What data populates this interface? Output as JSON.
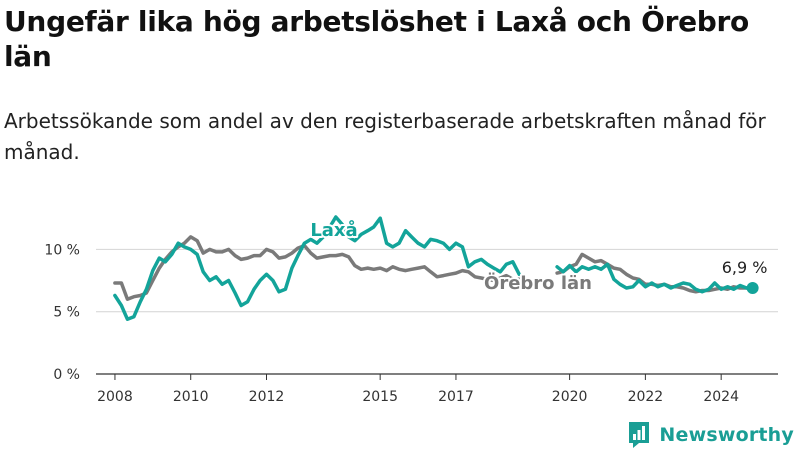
{
  "title": "Ungefär lika hög arbetslöshet i Laxå och Örebro län",
  "subtitle": "Arbetssökande som andel av den registerbaserade arbetskraften månad för månad.",
  "brand": {
    "name": "Newsworthy",
    "icon": "bar-chart-logo-icon"
  },
  "colors": {
    "laxa": "#13a49a",
    "orebro": "#7a7a7a",
    "grid": "#d4d4d4",
    "axis": "#333333"
  },
  "chart_data": {
    "type": "line",
    "xlim": [
      2007.5,
      2025.5
    ],
    "ylim": [
      0,
      13
    ],
    "yticks": [
      {
        "value": 0,
        "label": "0 %"
      },
      {
        "value": 5,
        "label": "5 %"
      },
      {
        "value": 10,
        "label": "10 %"
      }
    ],
    "xticks": [
      {
        "value": 2008,
        "label": "2008"
      },
      {
        "value": 2010,
        "label": "2010"
      },
      {
        "value": 2012,
        "label": "2012"
      },
      {
        "value": 2015,
        "label": "2015"
      },
      {
        "value": 2017,
        "label": "2017"
      },
      {
        "value": 2020,
        "label": "2020"
      },
      {
        "value": 2022,
        "label": "2022"
      },
      {
        "value": 2024,
        "label": "2024"
      }
    ],
    "grid": true,
    "series": [
      {
        "name": "Örebro län",
        "key": "orebro",
        "segments": [
          {
            "x": [
              2008.0,
              2008.17,
              2008.33,
              2008.5,
              2008.67,
              2008.83,
              2009.0,
              2009.17,
              2009.33,
              2009.5,
              2009.67,
              2009.83,
              2010.0,
              2010.17,
              2010.33,
              2010.5,
              2010.67,
              2010.83,
              2011.0,
              2011.17,
              2011.33,
              2011.5,
              2011.67,
              2011.83,
              2012.0,
              2012.17,
              2012.33,
              2012.5,
              2012.67,
              2012.83,
              2013.0,
              2013.17,
              2013.33,
              2013.5,
              2013.67,
              2013.83,
              2014.0,
              2014.17,
              2014.33,
              2014.5,
              2014.67,
              2014.83,
              2015.0,
              2015.17,
              2015.33,
              2015.5,
              2015.67,
              2015.83,
              2016.0,
              2016.17,
              2016.33,
              2016.5,
              2016.67,
              2016.83,
              2017.0,
              2017.17,
              2017.33,
              2017.5,
              2017.67,
              2017.83,
              2018.0,
              2018.17,
              2018.33,
              2018.5,
              2018.67
            ],
            "y": [
              7.3,
              7.3,
              6.0,
              6.2,
              6.3,
              6.5,
              7.5,
              8.5,
              9.2,
              9.8,
              10.2,
              10.5,
              11.0,
              10.7,
              9.7,
              10.0,
              9.8,
              9.8,
              10.0,
              9.5,
              9.2,
              9.3,
              9.5,
              9.5,
              10.0,
              9.8,
              9.3,
              9.4,
              9.7,
              10.1,
              10.3,
              9.7,
              9.3,
              9.4,
              9.5,
              9.5,
              9.6,
              9.4,
              8.7,
              8.4,
              8.5,
              8.4,
              8.5,
              8.3,
              8.6,
              8.4,
              8.3,
              8.4,
              8.5,
              8.6,
              8.2,
              7.8,
              7.9,
              8.0,
              8.1,
              8.3,
              8.2,
              7.8,
              7.7,
              7.6,
              7.5,
              7.7,
              7.9,
              7.6,
              7.6
            ]
          },
          {
            "x": [
              2019.67,
              2019.83,
              2020.0,
              2020.17,
              2020.33,
              2020.5,
              2020.67,
              2020.83,
              2021.0,
              2021.17,
              2021.33,
              2021.5,
              2021.67,
              2021.83,
              2022.0,
              2022.17,
              2022.33,
              2022.5,
              2022.67,
              2022.83,
              2023.0,
              2023.17,
              2023.33,
              2023.5,
              2023.67,
              2023.83,
              2024.0,
              2024.17,
              2024.33,
              2024.5,
              2024.67,
              2024.83
            ],
            "y": [
              8.1,
              8.2,
              8.6,
              8.8,
              9.6,
              9.3,
              9.0,
              9.1,
              8.8,
              8.5,
              8.4,
              8.0,
              7.7,
              7.6,
              7.2,
              7.2,
              7.1,
              7.2,
              7.0,
              7.0,
              6.9,
              6.7,
              6.6,
              6.7,
              6.7,
              6.8,
              6.9,
              6.8,
              7.0,
              6.9,
              6.9,
              6.9
            ]
          }
        ]
      },
      {
        "name": "Laxå",
        "key": "laxa",
        "segments": [
          {
            "x": [
              2008.0,
              2008.17,
              2008.33,
              2008.5,
              2008.67,
              2008.83,
              2009.0,
              2009.17,
              2009.33,
              2009.5,
              2009.67,
              2009.83,
              2010.0,
              2010.17,
              2010.33,
              2010.5,
              2010.67,
              2010.83,
              2011.0,
              2011.17,
              2011.33,
              2011.5,
              2011.67,
              2011.83,
              2012.0,
              2012.17,
              2012.33,
              2012.5,
              2012.67,
              2012.83,
              2013.0,
              2013.17,
              2013.33,
              2013.5,
              2013.67,
              2013.83,
              2014.0,
              2014.17,
              2014.33,
              2014.5,
              2014.67,
              2014.83,
              2015.0,
              2015.17,
              2015.33,
              2015.5,
              2015.67,
              2015.83,
              2016.0,
              2016.17,
              2016.33,
              2016.5,
              2016.67,
              2016.83,
              2017.0,
              2017.17,
              2017.33,
              2017.5,
              2017.67,
              2017.83,
              2018.0,
              2018.17,
              2018.33,
              2018.5,
              2018.67
            ],
            "y": [
              6.3,
              5.5,
              4.4,
              4.6,
              5.8,
              6.8,
              8.3,
              9.3,
              9.0,
              9.6,
              10.5,
              10.2,
              10.0,
              9.6,
              8.2,
              7.5,
              7.8,
              7.2,
              7.5,
              6.5,
              5.5,
              5.8,
              6.8,
              7.5,
              8.0,
              7.5,
              6.6,
              6.8,
              8.5,
              9.5,
              10.5,
              10.8,
              10.5,
              11.0,
              11.8,
              12.6,
              12.0,
              11.0,
              10.7,
              11.2,
              11.5,
              11.8,
              12.5,
              10.5,
              10.2,
              10.5,
              11.5,
              11.0,
              10.5,
              10.2,
              10.8,
              10.7,
              10.5,
              10.0,
              10.5,
              10.2,
              8.6,
              9.0,
              9.2,
              8.8,
              8.5,
              8.2,
              8.8,
              9.0,
              8.0
            ]
          },
          {
            "x": [
              2019.67,
              2019.83,
              2020.0,
              2020.17,
              2020.33,
              2020.5,
              2020.67,
              2020.83,
              2021.0,
              2021.17,
              2021.33,
              2021.5,
              2021.67,
              2021.83,
              2022.0,
              2022.17,
              2022.33,
              2022.5,
              2022.67,
              2022.83,
              2023.0,
              2023.17,
              2023.33,
              2023.5,
              2023.67,
              2023.83,
              2024.0,
              2024.17,
              2024.33,
              2024.5,
              2024.67,
              2024.83
            ],
            "y": [
              8.6,
              8.2,
              8.7,
              8.2,
              8.6,
              8.4,
              8.6,
              8.4,
              8.8,
              7.6,
              7.2,
              6.9,
              7.0,
              7.5,
              7.0,
              7.3,
              7.0,
              7.2,
              6.9,
              7.1,
              7.3,
              7.2,
              6.8,
              6.6,
              6.8,
              7.3,
              6.8,
              7.0,
              6.8,
              7.1,
              6.9,
              6.9
            ]
          }
        ]
      }
    ],
    "annotations": {
      "laxa_label": "Laxå",
      "orebro_label": "Örebro län",
      "last_value": "6,9 %"
    }
  }
}
